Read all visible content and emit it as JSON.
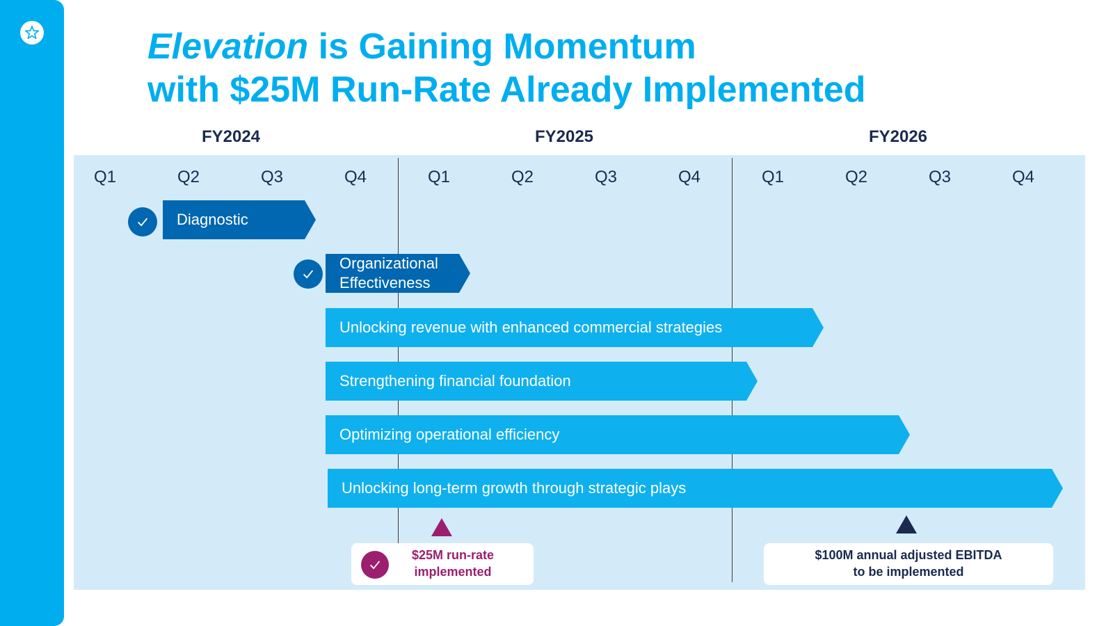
{
  "sidebar": {
    "logo_icon": "star-logo-icon"
  },
  "title": {
    "emphasis": "Elevation",
    "line1_rest": " is Gaining Momentum",
    "line2": "with $25M Run-Rate Already Implemented"
  },
  "years": [
    "FY2024",
    "FY2025",
    "FY2026"
  ],
  "quarters": [
    "Q1",
    "Q2",
    "Q3",
    "Q4",
    "Q1",
    "Q2",
    "Q3",
    "Q4",
    "Q1",
    "Q2",
    "Q3",
    "Q4"
  ],
  "workstreams": [
    {
      "label": "Diagnostic",
      "completed": true,
      "start_quarter": "FY2024 Q2",
      "end_quarter": "FY2024 Q3"
    },
    {
      "label_line1": "Organizational",
      "label_line2": "Effectiveness",
      "completed": true,
      "start_quarter": "FY2024 Q4",
      "end_quarter": "FY2025 Q1"
    },
    {
      "label": "Unlocking revenue with enhanced commercial strategies",
      "completed": false,
      "start_quarter": "FY2024 Q4",
      "end_quarter": "FY2026 Q1"
    },
    {
      "label": "Strengthening financial foundation",
      "completed": false,
      "start_quarter": "FY2024 Q4",
      "end_quarter": "FY2025 Q4"
    },
    {
      "label": "Optimizing operational efficiency",
      "completed": false,
      "start_quarter": "FY2024 Q4",
      "end_quarter": "FY2026 Q2"
    },
    {
      "label": "Unlocking long-term growth through strategic plays",
      "completed": false,
      "start_quarter": "FY2024 Q4",
      "end_quarter": "FY2026 Q4"
    }
  ],
  "milestones": [
    {
      "line1": "$25M run-rate",
      "line2": "implemented",
      "completed": true,
      "quarter": "FY2025 Q1",
      "color": "#9b1f6e"
    },
    {
      "line1": "$100M annual adjusted EBITDA",
      "line2": "to be implemented",
      "completed": false,
      "quarter": "FY2026 Q2",
      "color": "#1a2a4f"
    }
  ],
  "colors": {
    "accent": "#00aeef",
    "dark_bar": "#0067b0",
    "light_bar": "#0fb0ee",
    "panel": "#d3ebf9",
    "navy": "#1a2a4f",
    "magenta": "#9b1f6e"
  }
}
